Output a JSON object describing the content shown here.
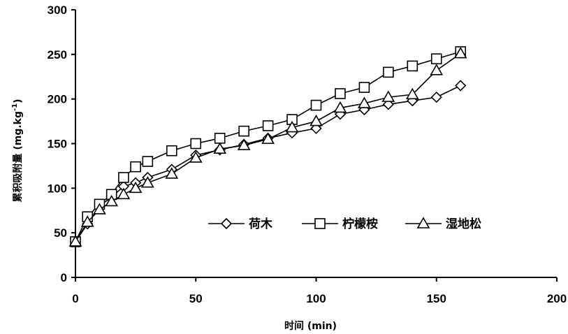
{
  "chart_data": {
    "type": "line",
    "xlabel": "时间 (min)",
    "ylabel_main": "累积吸附量 (mg.kg",
    "ylabel_sup": "-1",
    "ylabel_close": ")",
    "xlim": [
      0,
      200
    ],
    "ylim": [
      0,
      300
    ],
    "xticks": [
      0,
      50,
      100,
      150,
      200
    ],
    "yticks": [
      0,
      50,
      100,
      150,
      200,
      250,
      300
    ],
    "grid": false,
    "legend_position": "lower-right",
    "series": [
      {
        "name": "荷木",
        "marker": "diamond",
        "points": [
          [
            0,
            40
          ],
          [
            5,
            60
          ],
          [
            10,
            80
          ],
          [
            15,
            90
          ],
          [
            20,
            102
          ],
          [
            25,
            106
          ],
          [
            30,
            112
          ],
          [
            40,
            121
          ],
          [
            50,
            137
          ],
          [
            60,
            143
          ],
          [
            70,
            149
          ],
          [
            80,
            156
          ],
          [
            90,
            162
          ],
          [
            100,
            167
          ],
          [
            110,
            183
          ],
          [
            120,
            188
          ],
          [
            130,
            194
          ],
          [
            140,
            198
          ],
          [
            150,
            202
          ],
          [
            160,
            215
          ]
        ]
      },
      {
        "name": "柠檬桉",
        "marker": "square",
        "points": [
          [
            0,
            40
          ],
          [
            5,
            68
          ],
          [
            10,
            82
          ],
          [
            15,
            93
          ],
          [
            20,
            112
          ],
          [
            25,
            124
          ],
          [
            30,
            130
          ],
          [
            40,
            142
          ],
          [
            50,
            150
          ],
          [
            60,
            156
          ],
          [
            70,
            164
          ],
          [
            80,
            170
          ],
          [
            90,
            177
          ],
          [
            100,
            193
          ],
          [
            110,
            206
          ],
          [
            120,
            213
          ],
          [
            130,
            230
          ],
          [
            140,
            237
          ],
          [
            150,
            245
          ],
          [
            160,
            253
          ]
        ]
      },
      {
        "name": "湿地松",
        "marker": "triangle",
        "points": [
          [
            0,
            40
          ],
          [
            5,
            62
          ],
          [
            10,
            76
          ],
          [
            15,
            85
          ],
          [
            20,
            93
          ],
          [
            25,
            100
          ],
          [
            30,
            106
          ],
          [
            40,
            116
          ],
          [
            50,
            134
          ],
          [
            60,
            144
          ],
          [
            70,
            148
          ],
          [
            80,
            155
          ],
          [
            90,
            168
          ],
          [
            100,
            175
          ],
          [
            110,
            190
          ],
          [
            120,
            195
          ],
          [
            130,
            202
          ],
          [
            140,
            205
          ],
          [
            150,
            232
          ],
          [
            160,
            251
          ]
        ]
      }
    ]
  }
}
